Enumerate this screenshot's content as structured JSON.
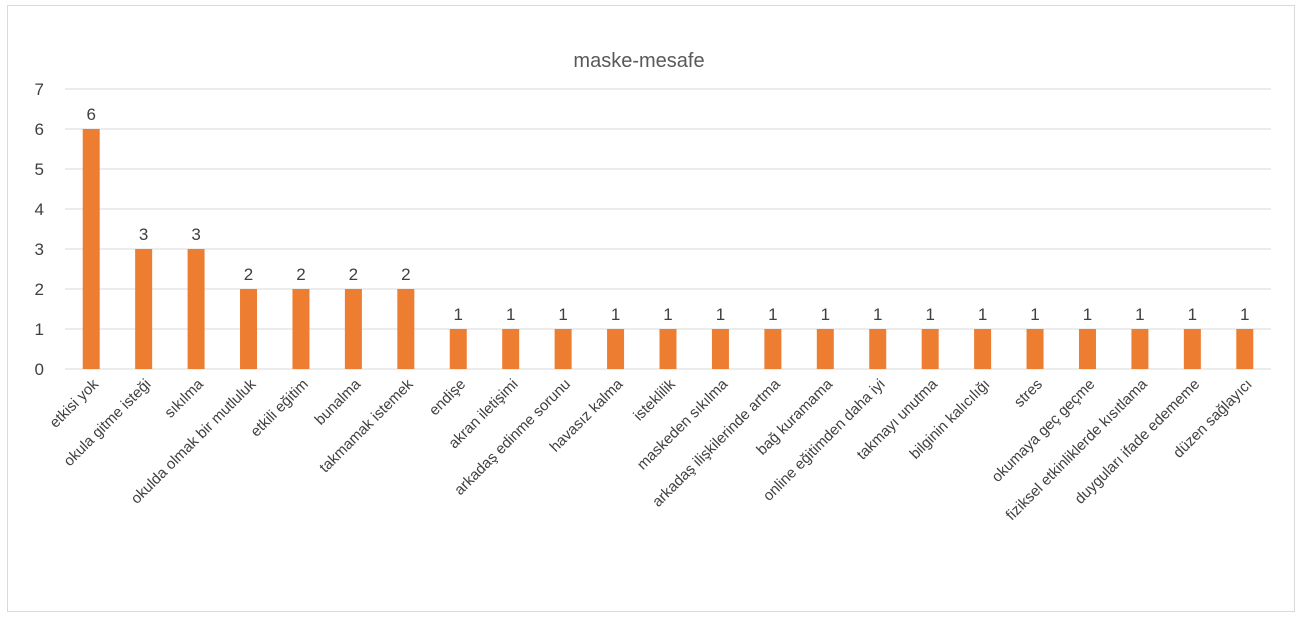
{
  "chart_data": {
    "type": "bar",
    "title": "maske-mesafe",
    "xlabel": "",
    "ylabel": "",
    "ylim": [
      0,
      7
    ],
    "yticks": [
      0,
      1,
      2,
      3,
      4,
      5,
      6,
      7
    ],
    "grid": true,
    "legend": "none",
    "bar_color": "#ED7D31",
    "categories": [
      "etkisi yok",
      "okula gitme isteği",
      "sıkılma",
      "okulda olmak bir mutluluk",
      "etkili eğitim",
      "bunalma",
      "takmamak istemek",
      "endişe",
      "akran iletişimi",
      "arkadaş edinme sorunu",
      "havasız kalma",
      "isteklilik",
      "maskeden sıkılma",
      "arkadaş ilişkilerinde artma",
      "bağ kuramama",
      "online eğitimden daha iyi",
      "takmayı unutma",
      "bilginin kalıcılığı",
      "stres",
      "okumaya geç geçme",
      "fiziksel etkinliklerde kısıtlama",
      "duyguları ifade edememe",
      "düzen sağlayıcı"
    ],
    "values": [
      6,
      3,
      3,
      2,
      2,
      2,
      2,
      1,
      1,
      1,
      1,
      1,
      1,
      1,
      1,
      1,
      1,
      1,
      1,
      1,
      1,
      1,
      1
    ]
  }
}
